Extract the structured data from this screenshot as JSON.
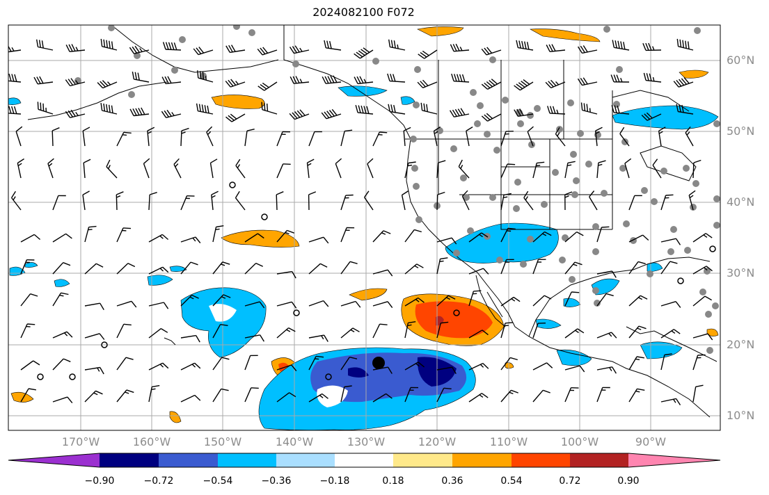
{
  "title": "2024082100 F072",
  "lat_labels": [
    "60°N",
    "50°N",
    "40°N",
    "30°N",
    "20°N",
    "10°N"
  ],
  "lon_labels": [
    "170°W",
    "160°W",
    "150°W",
    "140°W",
    "130°W",
    "120°W",
    "110°W",
    "100°W",
    "90°W"
  ],
  "colorbar": {
    "colors": [
      "#9b30d0",
      "#000080",
      "#3a5bd0",
      "#00bfff",
      "#aadfff",
      "#ffffff",
      "#ffe98a",
      "#ffa500",
      "#ff4500",
      "#b22222",
      "#ff85b0"
    ],
    "tick_labels": [
      "−0.90",
      "−0.72",
      "−0.54",
      "−0.36",
      "−0.18",
      "0.18",
      "0.36",
      "0.54",
      "0.72",
      "0.90"
    ]
  },
  "map_extent": {
    "lon_range": [
      "180°W",
      "80°W"
    ],
    "lat_range": [
      "7°N",
      "65°N"
    ]
  }
}
